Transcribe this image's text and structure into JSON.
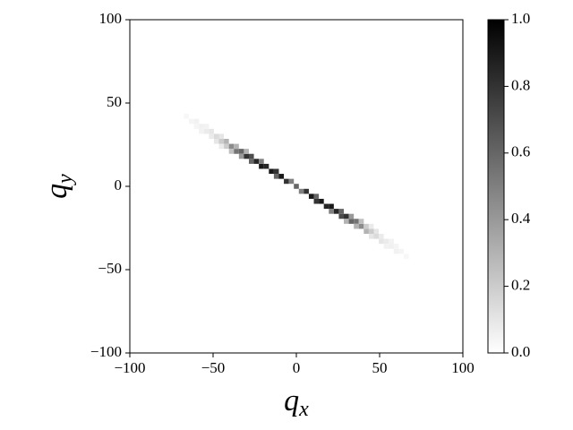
{
  "chart_data": {
    "type": "hist2d",
    "xlabel": {
      "base": "q",
      "sub": "x"
    },
    "ylabel": {
      "base": "q",
      "sub": "y"
    },
    "xlim": [
      -100,
      100
    ],
    "ylim": [
      -100,
      100
    ],
    "xticks": [
      {
        "value": -100,
        "label": "−100"
      },
      {
        "value": -50,
        "label": "−50"
      },
      0,
      50,
      100
    ],
    "yticks": [
      {
        "value": -100,
        "label": "−100"
      },
      {
        "value": -50,
        "label": "−50"
      },
      0,
      50,
      100
    ],
    "bin_size": 3,
    "colormap": "Greys",
    "clim": [
      0,
      1
    ],
    "cticks": [
      {
        "value": 0,
        "label": "0.0"
      },
      {
        "value": 0.2,
        "label": "0.2"
      },
      {
        "value": 0.4,
        "label": "0.4"
      },
      {
        "value": 0.6,
        "label": "0.6"
      },
      {
        "value": 0.8,
        "label": "0.8"
      },
      {
        "value": 1,
        "label": "1.0"
      }
    ],
    "x": [
      -66,
      -63,
      -60,
      -60,
      -57,
      -57,
      -54,
      -54,
      -51,
      -51,
      -48,
      -48,
      -45,
      -45,
      -45,
      -42,
      -42,
      -39,
      -39,
      -36,
      -36,
      -33,
      -33,
      -30,
      -30,
      -27,
      -27,
      -24,
      -21,
      -21,
      -18,
      -15,
      -12,
      -12,
      -9,
      -6,
      -3,
      0,
      3,
      6,
      9,
      12,
      12,
      15,
      18,
      21,
      21,
      24,
      27,
      27,
      30,
      30,
      33,
      33,
      36,
      36,
      39,
      39,
      42,
      42,
      45,
      45,
      45,
      48,
      48,
      51,
      51,
      54,
      54,
      57,
      57,
      60,
      60,
      63,
      66
    ],
    "y": [
      42,
      39,
      39,
      36,
      36,
      33,
      33,
      36,
      33,
      30,
      30,
      27,
      27,
      30,
      24,
      27,
      24,
      24,
      21,
      21,
      24,
      21,
      18,
      18,
      21,
      18,
      15,
      15,
      12,
      15,
      12,
      9,
      9,
      6,
      6,
      3,
      3,
      0,
      -3,
      -3,
      -6,
      -9,
      -6,
      -9,
      -12,
      -12,
      -15,
      -15,
      -18,
      -15,
      -18,
      -21,
      -21,
      -18,
      -21,
      -24,
      -24,
      -21,
      -27,
      -24,
      -27,
      -30,
      -24,
      -30,
      -27,
      -33,
      -30,
      -33,
      -36,
      -36,
      -33,
      -39,
      -36,
      -39,
      -42
    ],
    "values": [
      0.03,
      0.04,
      0.05,
      0.04,
      0.06,
      0.05,
      0.08,
      0.05,
      0.1,
      0.08,
      0.14,
      0.1,
      0.2,
      0.1,
      0.08,
      0.3,
      0.2,
      0.45,
      0.25,
      0.55,
      0.3,
      0.6,
      0.4,
      0.8,
      0.3,
      0.7,
      0.6,
      0.85,
      0.9,
      0.5,
      0.85,
      0.9,
      0.8,
      0.6,
      0.9,
      0.8,
      0.5,
      0.6,
      0.5,
      0.8,
      0.9,
      0.8,
      0.6,
      0.9,
      0.85,
      0.9,
      0.5,
      0.85,
      0.7,
      0.6,
      0.8,
      0.3,
      0.6,
      0.4,
      0.55,
      0.3,
      0.45,
      0.25,
      0.3,
      0.2,
      0.2,
      0.1,
      0.08,
      0.14,
      0.1,
      0.1,
      0.08,
      0.08,
      0.05,
      0.06,
      0.05,
      0.05,
      0.04,
      0.04,
      0.03
    ]
  }
}
